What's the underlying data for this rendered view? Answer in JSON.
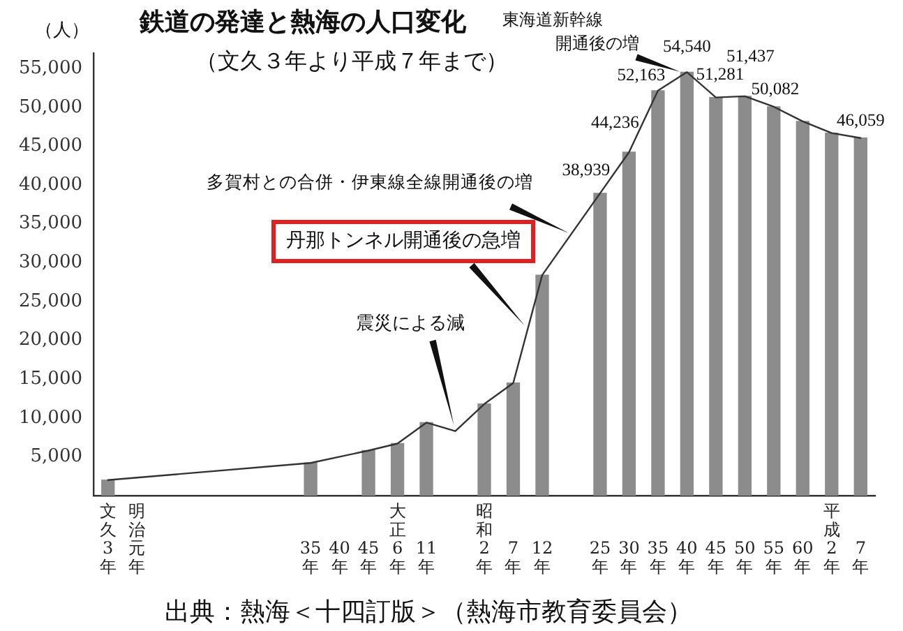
{
  "chart_data": {
    "type": "bar",
    "title": "鉄道の発達と熱海の人口変化",
    "subtitle": "（文久３年より平成７年まで）",
    "ylabel": "（人）",
    "categories": [
      "文久3年",
      "明治元年",
      null,
      null,
      null,
      null,
      null,
      "35年",
      "40年",
      "45年",
      "大正6年",
      "11年",
      null,
      "昭和2年",
      "7年",
      "12年",
      null,
      "25年",
      "30年",
      "35年",
      "40年",
      "45年",
      "50年",
      "55年",
      "60年",
      "平成2年",
      "7年"
    ],
    "series": [
      {
        "color": "#8c8c8c",
        "values": [
          2000,
          null,
          null,
          null,
          null,
          null,
          null,
          4200,
          null,
          5800,
          6700,
          9400,
          null,
          11800,
          14500,
          28400,
          null,
          38939,
          44236,
          52163,
          54540,
          51281,
          51437,
          50082,
          48200,
          46700,
          46059
        ],
        "value_labels": [
          null,
          null,
          null,
          null,
          null,
          null,
          null,
          null,
          null,
          null,
          null,
          null,
          null,
          null,
          null,
          null,
          null,
          "38,939",
          "44,236",
          "52,163",
          "54,540",
          "51,281",
          "51,437",
          "50,082",
          null,
          null,
          "46,059"
        ]
      },
      {
        "type": "line",
        "color": "#333333",
        "values": [
          2000,
          null,
          null,
          null,
          null,
          null,
          null,
          4200,
          null,
          5800,
          6700,
          9400,
          8300,
          11800,
          14500,
          28400,
          null,
          38939,
          44236,
          52163,
          54540,
          51281,
          51437,
          50082,
          48200,
          46700,
          46059
        ]
      }
    ],
    "ylim": [
      0,
      57000
    ],
    "yticks": [
      {
        "value": 0,
        "label": null
      },
      {
        "value": 5000,
        "label": "5,000"
      },
      {
        "value": 10000,
        "label": "10,000"
      },
      {
        "value": 15000,
        "label": "15,000"
      },
      {
        "value": 20000,
        "label": "20,000"
      },
      {
        "value": 25000,
        "label": "25,000"
      },
      {
        "value": 30000,
        "label": "30,000"
      },
      {
        "value": 35000,
        "label": "35,000"
      },
      {
        "value": 40000,
        "label": "40,000"
      },
      {
        "value": 45000,
        "label": "45,000"
      },
      {
        "value": 50000,
        "label": "50,000"
      },
      {
        "value": 55000,
        "label": "55,000"
      }
    ],
    "marker": "none",
    "annotations": [
      "東海道新幹線開通後の増",
      "多賀村との合併・伊東線全線開通後の増",
      "丹那トンネル開通後の急増",
      "震災による減",
      "出典：熱海＜十四訂版＞（熱海市教育委員会）"
    ]
  }
}
